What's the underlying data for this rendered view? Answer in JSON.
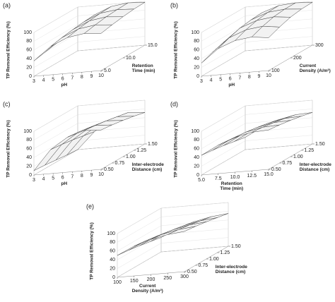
{
  "chart_data": [
    {
      "type": "surface",
      "title": "(a)",
      "z_label": "TP Removal Efficiency (%)",
      "x_label": [
        "pH"
      ],
      "y_label": [
        "Retention",
        "Time (min)"
      ],
      "xlim": [
        3,
        10
      ],
      "xticks": [
        3,
        4,
        5,
        6,
        7,
        8,
        9,
        10
      ],
      "ylim": [
        5,
        15
      ],
      "yticks": [
        {
          "value": 5,
          "label": "5.0"
        },
        {
          "value": 10,
          "label": "10.0"
        },
        {
          "value": 15,
          "label": "15.0"
        }
      ],
      "zlim": [
        0,
        100
      ],
      "zticks": [
        0,
        20,
        40,
        60,
        80,
        100
      ],
      "x": [
        3,
        4.75,
        6.5,
        8.25,
        10
      ],
      "y": [
        5,
        7.5,
        10,
        12.5,
        15
      ],
      "z": [
        [
          35,
          65,
          82,
          88,
          85
        ],
        [
          40,
          70,
          87,
          93,
          90
        ],
        [
          45,
          74,
          91,
          97,
          94
        ],
        [
          48,
          77,
          94,
          99,
          97
        ],
        [
          50,
          79,
          95,
          100,
          98
        ]
      ]
    },
    {
      "type": "surface",
      "title": "(b)",
      "z_label": "TP Removal Efficiency (%)",
      "x_label": [
        "pH"
      ],
      "y_label": [
        "Current",
        "Density (A/m²)"
      ],
      "xlim": [
        3,
        10
      ],
      "xticks": [
        3,
        4,
        5,
        6,
        7,
        8,
        9,
        10
      ],
      "ylim": [
        100,
        300
      ],
      "yticks": [
        100,
        200,
        300
      ],
      "zlim": [
        0,
        100
      ],
      "zticks": [
        0,
        20,
        40,
        60,
        80,
        100
      ],
      "x": [
        3,
        4.75,
        6.5,
        8.25,
        10
      ],
      "y": [
        100,
        150,
        200,
        250,
        300
      ],
      "z": [
        [
          30,
          60,
          75,
          80,
          75
        ],
        [
          40,
          70,
          85,
          90,
          85
        ],
        [
          48,
          78,
          92,
          97,
          93
        ],
        [
          52,
          82,
          96,
          100,
          97
        ],
        [
          55,
          84,
          97,
          100,
          98
        ]
      ]
    },
    {
      "type": "surface",
      "title": "(c)",
      "z_label": "TP Removal Efficiency (%)",
      "x_label": [
        "pH"
      ],
      "y_label": [
        "Inter-electrode",
        "Distance (cm)"
      ],
      "xlim": [
        3,
        10
      ],
      "xticks": [
        3,
        4,
        5,
        6,
        7,
        8,
        9,
        10
      ],
      "ylim": [
        0.5,
        1.5
      ],
      "yticks": [
        {
          "value": 0.5,
          "label": "0.50"
        },
        {
          "value": 0.75,
          "label": "0.75"
        },
        {
          "value": 1,
          "label": "1.00"
        },
        {
          "value": 1.25,
          "label": "1.25"
        },
        {
          "value": 1.5,
          "label": "1.50"
        }
      ],
      "zlim": [
        0,
        100
      ],
      "zticks": [
        0,
        20,
        40,
        60,
        80,
        100
      ],
      "x": [
        3,
        4.75,
        6.5,
        8.25,
        10
      ],
      "y": [
        0.5,
        0.75,
        1,
        1.25,
        1.5
      ],
      "z": [
        [
          10,
          55,
          80,
          92,
          90
        ],
        [
          8,
          52,
          77,
          89,
          87
        ],
        [
          5,
          48,
          73,
          85,
          83
        ],
        [
          2,
          43,
          68,
          80,
          78
        ],
        [
          0,
          38,
          62,
          75,
          72
        ]
      ]
    },
    {
      "type": "surface",
      "title": "(d)",
      "z_label": "TP Removal Efficiency (%)",
      "x_label": [
        "Retention",
        "Time (min)"
      ],
      "y_label": [
        "Inter-electrode",
        "Distance (cm)"
      ],
      "xlim": [
        5,
        15
      ],
      "xticks": [
        {
          "value": 5,
          "label": "5.0"
        },
        {
          "value": 7.5,
          "label": "7.5"
        },
        {
          "value": 10,
          "label": "10.0"
        },
        {
          "value": 12.5,
          "label": "12.5"
        },
        {
          "value": 15,
          "label": "15.0"
        }
      ],
      "ylim": [
        0.5,
        1.5
      ],
      "yticks": [
        {
          "value": 0.5,
          "label": "0.50"
        },
        {
          "value": 0.75,
          "label": "0.75"
        },
        {
          "value": 1,
          "label": "1.00"
        },
        {
          "value": 1.25,
          "label": "1.25"
        },
        {
          "value": 1.5,
          "label": "1.50"
        }
      ],
      "zlim": [
        0,
        100
      ],
      "zticks": [
        0,
        20,
        40,
        60,
        80,
        100
      ],
      "x": [
        5,
        7.5,
        10,
        12.5,
        15
      ],
      "y": [
        0.5,
        0.75,
        1,
        1.25,
        1.5
      ],
      "z": [
        [
          45,
          65,
          80,
          88,
          90
        ],
        [
          42,
          62,
          77,
          85,
          87
        ],
        [
          38,
          58,
          73,
          81,
          83
        ],
        [
          33,
          53,
          68,
          76,
          78
        ],
        [
          28,
          48,
          62,
          70,
          72
        ]
      ]
    },
    {
      "type": "surface",
      "title": "(e)",
      "z_label": "TP Removal Efficiency (%)",
      "x_label": [
        "Current",
        "Density (A/m²)"
      ],
      "y_label": [
        "Inter-electrode",
        "Distance (cm)"
      ],
      "xlim": [
        100,
        300
      ],
      "xticks": [
        100,
        150,
        200,
        250,
        300
      ],
      "ylim": [
        0.5,
        1.5
      ],
      "yticks": [
        {
          "value": 0.5,
          "label": "0.50"
        },
        {
          "value": 0.75,
          "label": "0.75"
        },
        {
          "value": 1,
          "label": "1.00"
        },
        {
          "value": 1.25,
          "label": "1.25"
        },
        {
          "value": 1.5,
          "label": "1.50"
        }
      ],
      "zlim": [
        0,
        100
      ],
      "zticks": [
        0,
        20,
        40,
        60,
        80,
        100
      ],
      "x": [
        100,
        150,
        200,
        250,
        300
      ],
      "y": [
        0.5,
        0.75,
        1,
        1.25,
        1.5
      ],
      "z": [
        [
          50,
          68,
          80,
          88,
          92
        ],
        [
          47,
          65,
          77,
          85,
          89
        ],
        [
          43,
          61,
          73,
          81,
          85
        ],
        [
          38,
          56,
          68,
          76,
          80
        ],
        [
          33,
          51,
          63,
          71,
          75
        ]
      ]
    }
  ]
}
